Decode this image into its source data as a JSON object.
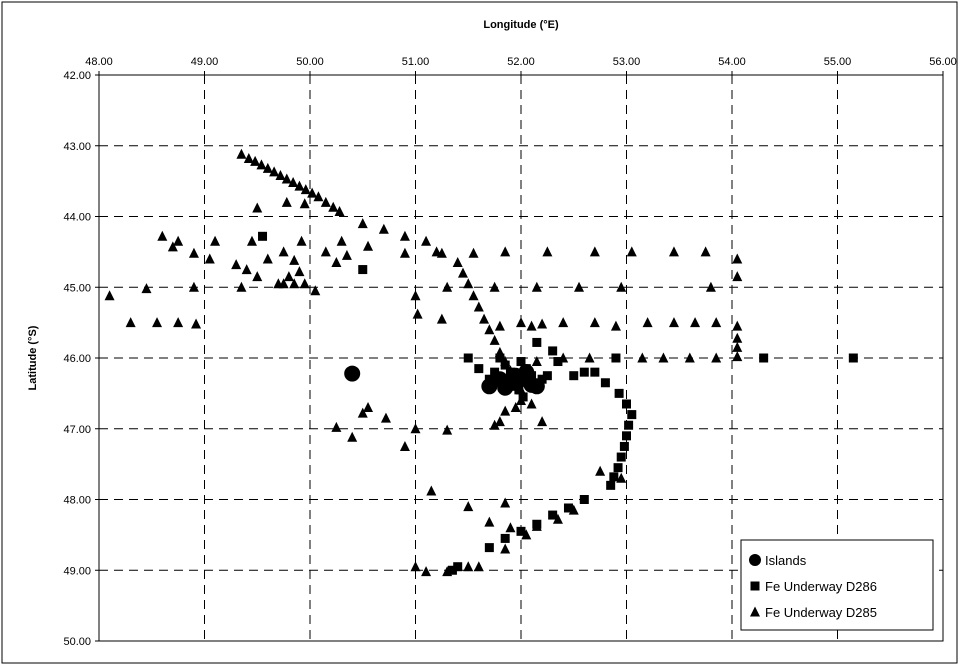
{
  "chart_data": {
    "type": "scatter",
    "xlabel": "Longitude (°E)",
    "ylabel": "Latitude (°S)",
    "xlim": [
      48,
      56
    ],
    "ylim": [
      42,
      50
    ],
    "x_axis_position": "top",
    "y_inverted": true,
    "grid": true,
    "legend_position": "bottom-right",
    "x_ticks": [
      "48.00",
      "49.00",
      "50.00",
      "51.00",
      "52.00",
      "53.00",
      "54.00",
      "55.00",
      "56.00"
    ],
    "y_ticks": [
      "42.00",
      "43.00",
      "44.00",
      "45.00",
      "46.00",
      "47.00",
      "48.00",
      "49.00",
      "50.00"
    ],
    "series": [
      {
        "name": "Islands",
        "marker": "circle",
        "points": [
          [
            50.4,
            46.22
          ],
          [
            51.7,
            46.4
          ],
          [
            51.8,
            46.3
          ],
          [
            51.9,
            46.35
          ],
          [
            52.0,
            46.3
          ],
          [
            52.1,
            46.38
          ],
          [
            52.15,
            46.4
          ],
          [
            51.95,
            46.25
          ],
          [
            52.05,
            46.2
          ],
          [
            51.85,
            46.42
          ]
        ]
      },
      {
        "name": "Fe Underway D286",
        "marker": "square",
        "points": [
          [
            49.55,
            44.28
          ],
          [
            50.5,
            44.75
          ],
          [
            51.5,
            46.0
          ],
          [
            51.6,
            46.15
          ],
          [
            51.7,
            46.3
          ],
          [
            51.8,
            46.0
          ],
          [
            51.85,
            46.1
          ],
          [
            51.9,
            46.2
          ],
          [
            52.0,
            46.05
          ],
          [
            52.05,
            46.15
          ],
          [
            52.1,
            46.25
          ],
          [
            52.15,
            45.78
          ],
          [
            52.2,
            46.3
          ],
          [
            52.25,
            46.25
          ],
          [
            52.3,
            45.9
          ],
          [
            52.35,
            46.05
          ],
          [
            52.5,
            46.25
          ],
          [
            52.6,
            46.2
          ],
          [
            52.7,
            46.2
          ],
          [
            52.8,
            46.35
          ],
          [
            52.9,
            46.0
          ],
          [
            52.93,
            46.5
          ],
          [
            53.0,
            46.65
          ],
          [
            53.05,
            46.8
          ],
          [
            53.02,
            46.95
          ],
          [
            53.0,
            47.1
          ],
          [
            52.98,
            47.25
          ],
          [
            52.95,
            47.4
          ],
          [
            52.92,
            47.55
          ],
          [
            52.88,
            47.68
          ],
          [
            52.85,
            47.8
          ],
          [
            52.6,
            48.0
          ],
          [
            52.45,
            48.12
          ],
          [
            52.3,
            48.22
          ],
          [
            52.15,
            48.35
          ],
          [
            52.0,
            48.45
          ],
          [
            51.85,
            48.55
          ],
          [
            51.7,
            48.68
          ],
          [
            51.4,
            48.95
          ],
          [
            51.35,
            49.0
          ],
          [
            54.3,
            46.0
          ],
          [
            55.15,
            46.0
          ],
          [
            51.75,
            46.2
          ],
          [
            51.95,
            46.4
          ],
          [
            52.02,
            46.55
          ],
          [
            51.98,
            46.45
          ]
        ]
      },
      {
        "name": "Fe Underway D285",
        "marker": "triangle",
        "points": [
          [
            49.35,
            43.12
          ],
          [
            49.42,
            43.18
          ],
          [
            49.48,
            43.22
          ],
          [
            49.54,
            43.27
          ],
          [
            49.6,
            43.32
          ],
          [
            49.66,
            43.37
          ],
          [
            49.72,
            43.42
          ],
          [
            49.78,
            43.47
          ],
          [
            49.84,
            43.52
          ],
          [
            49.9,
            43.57
          ],
          [
            49.96,
            43.62
          ],
          [
            50.02,
            43.67
          ],
          [
            50.08,
            43.72
          ],
          [
            50.15,
            43.8
          ],
          [
            50.22,
            43.87
          ],
          [
            50.28,
            43.93
          ],
          [
            49.5,
            43.88
          ],
          [
            49.78,
            43.8
          ],
          [
            49.95,
            43.82
          ],
          [
            48.3,
            45.5
          ],
          [
            48.55,
            45.5
          ],
          [
            48.75,
            45.5
          ],
          [
            48.92,
            45.52
          ],
          [
            48.1,
            45.12
          ],
          [
            48.45,
            45.02
          ],
          [
            48.9,
            45.0
          ],
          [
            48.6,
            44.28
          ],
          [
            48.7,
            44.43
          ],
          [
            48.75,
            44.35
          ],
          [
            48.9,
            44.52
          ],
          [
            49.05,
            44.6
          ],
          [
            49.1,
            44.35
          ],
          [
            49.3,
            44.68
          ],
          [
            49.35,
            45.0
          ],
          [
            49.4,
            44.75
          ],
          [
            49.45,
            44.35
          ],
          [
            49.5,
            44.85
          ],
          [
            49.6,
            44.6
          ],
          [
            49.7,
            44.95
          ],
          [
            49.75,
            44.95
          ],
          [
            49.8,
            44.85
          ],
          [
            49.85,
            44.95
          ],
          [
            49.9,
            44.78
          ],
          [
            49.95,
            44.95
          ],
          [
            49.75,
            44.5
          ],
          [
            49.85,
            44.62
          ],
          [
            49.92,
            44.35
          ],
          [
            50.05,
            45.05
          ],
          [
            50.15,
            44.5
          ],
          [
            50.25,
            44.65
          ],
          [
            50.3,
            44.35
          ],
          [
            50.35,
            44.55
          ],
          [
            50.5,
            44.1
          ],
          [
            50.55,
            44.42
          ],
          [
            50.7,
            44.18
          ],
          [
            50.9,
            44.28
          ],
          [
            50.9,
            44.52
          ],
          [
            51.0,
            45.12
          ],
          [
            51.02,
            45.38
          ],
          [
            51.1,
            44.35
          ],
          [
            51.2,
            44.5
          ],
          [
            51.25,
            44.52
          ],
          [
            51.3,
            45.0
          ],
          [
            51.4,
            44.65
          ],
          [
            51.45,
            44.8
          ],
          [
            51.5,
            44.95
          ],
          [
            51.55,
            45.12
          ],
          [
            51.6,
            45.28
          ],
          [
            51.65,
            45.45
          ],
          [
            51.7,
            45.6
          ],
          [
            51.75,
            45.75
          ],
          [
            51.8,
            45.92
          ],
          [
            51.85,
            46.05
          ],
          [
            51.9,
            46.18
          ],
          [
            51.95,
            46.3
          ],
          [
            52.0,
            46.45
          ],
          [
            51.25,
            45.45
          ],
          [
            51.75,
            45.0
          ],
          [
            51.8,
            45.55
          ],
          [
            52.0,
            45.5
          ],
          [
            52.1,
            45.55
          ],
          [
            52.2,
            45.52
          ],
          [
            52.4,
            45.5
          ],
          [
            52.7,
            45.5
          ],
          [
            52.9,
            45.55
          ],
          [
            53.2,
            45.5
          ],
          [
            53.45,
            45.5
          ],
          [
            53.65,
            45.5
          ],
          [
            53.85,
            45.5
          ],
          [
            54.05,
            45.55
          ],
          [
            54.05,
            45.72
          ],
          [
            54.05,
            45.85
          ],
          [
            54.05,
            45.98
          ],
          [
            52.4,
            46.0
          ],
          [
            52.65,
            46.0
          ],
          [
            53.15,
            46.0
          ],
          [
            53.35,
            46.0
          ],
          [
            53.6,
            46.0
          ],
          [
            53.85,
            46.0
          ],
          [
            54.05,
            44.6
          ],
          [
            54.05,
            44.85
          ],
          [
            53.8,
            45.0
          ],
          [
            53.45,
            44.5
          ],
          [
            53.75,
            44.5
          ],
          [
            53.05,
            44.5
          ],
          [
            52.7,
            44.5
          ],
          [
            52.25,
            44.5
          ],
          [
            51.85,
            44.5
          ],
          [
            51.55,
            44.52
          ],
          [
            52.55,
            45.0
          ],
          [
            52.95,
            45.0
          ],
          [
            52.15,
            45.0
          ],
          [
            50.25,
            46.98
          ],
          [
            50.4,
            47.12
          ],
          [
            50.5,
            46.78
          ],
          [
            50.55,
            46.7
          ],
          [
            50.72,
            46.85
          ],
          [
            50.9,
            47.25
          ],
          [
            51.0,
            47.0
          ],
          [
            51.3,
            47.02
          ],
          [
            51.15,
            47.88
          ],
          [
            51.5,
            48.1
          ],
          [
            51.7,
            48.32
          ],
          [
            51.85,
            48.05
          ],
          [
            51.9,
            48.4
          ],
          [
            52.05,
            48.5
          ],
          [
            52.15,
            48.38
          ],
          [
            52.35,
            48.28
          ],
          [
            52.5,
            48.15
          ],
          [
            52.75,
            47.6
          ],
          [
            52.95,
            47.7
          ],
          [
            51.0,
            48.95
          ],
          [
            51.1,
            49.02
          ],
          [
            51.3,
            49.02
          ],
          [
            51.5,
            48.95
          ],
          [
            51.6,
            48.95
          ],
          [
            51.85,
            48.7
          ],
          [
            51.75,
            46.95
          ],
          [
            51.8,
            46.9
          ],
          [
            52.2,
            46.9
          ],
          [
            52.1,
            46.65
          ],
          [
            51.95,
            46.7
          ],
          [
            51.85,
            46.75
          ],
          [
            52.0,
            46.6
          ],
          [
            52.15,
            46.05
          ]
        ]
      }
    ]
  }
}
